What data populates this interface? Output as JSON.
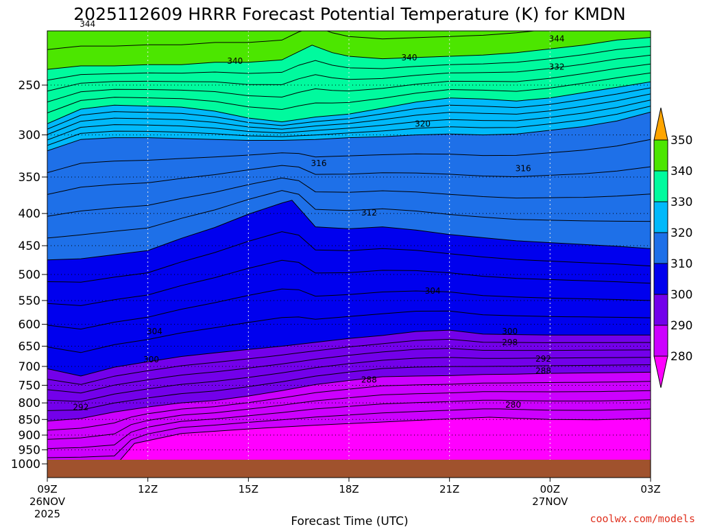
{
  "chart_data": {
    "type": "heatmap",
    "title": "2025112609 HRRR Forecast Potential Temperature (K) for KMDN",
    "xlabel": "Forecast Time (UTC)",
    "ylabel": "",
    "credit": "coolwx.com/models",
    "x_ticks": [
      {
        "hour": 0,
        "label": "09Z",
        "sub": [
          "26NOV",
          "2025"
        ]
      },
      {
        "hour": 3,
        "label": "12Z",
        "sub": []
      },
      {
        "hour": 6,
        "label": "15Z",
        "sub": []
      },
      {
        "hour": 9,
        "label": "18Z",
        "sub": []
      },
      {
        "hour": 12,
        "label": "21Z",
        "sub": []
      },
      {
        "hour": 15,
        "label": "00Z",
        "sub": [
          "27NOV"
        ]
      },
      {
        "hour": 18,
        "label": "03Z",
        "sub": []
      }
    ],
    "x_range_hours": [
      0,
      18
    ],
    "y_scale": "log-pressure",
    "y_range_hPa": [
      1050,
      200
    ],
    "y_ticks": [
      250,
      300,
      350,
      400,
      450,
      500,
      550,
      600,
      650,
      700,
      750,
      800,
      850,
      900,
      950,
      1000
    ],
    "grid": true,
    "levels": [
      280,
      290,
      300,
      310,
      320,
      330,
      340,
      350
    ],
    "colorbar_labels": [
      "280",
      "290",
      "300",
      "310",
      "320",
      "330",
      "340",
      "350"
    ],
    "colors": {
      "lt280": "#ff00ff",
      "b280": "#cc00ff",
      "b290": "#7300ea",
      "b300": "#0000ee",
      "b310": "#1e70e8",
      "b320": "#00b9fa",
      "b330": "#00fa9e",
      "b340": "#4ce600",
      "b350": "#f5f500",
      "gt350": "#ffa500",
      "ground": "#a0522d",
      "credit": "#e0301e"
    },
    "contour_interval_K": 2,
    "contour_labels": [
      {
        "text": "344",
        "hour": 1.2,
        "p": 200
      },
      {
        "text": "344",
        "hour": 15.2,
        "p": 211
      },
      {
        "text": "340",
        "hour": 5.6,
        "p": 229
      },
      {
        "text": "340",
        "hour": 10.8,
        "p": 226
      },
      {
        "text": "332",
        "hour": 15.2,
        "p": 234
      },
      {
        "text": "320",
        "hour": 11.2,
        "p": 288
      },
      {
        "text": "316",
        "hour": 8.1,
        "p": 333
      },
      {
        "text": "316",
        "hour": 14.2,
        "p": 339
      },
      {
        "text": "312",
        "hour": 9.6,
        "p": 399
      },
      {
        "text": "304",
        "hour": 11.5,
        "p": 531
      },
      {
        "text": "304",
        "hour": 3.2,
        "p": 616
      },
      {
        "text": "300",
        "hour": 13.8,
        "p": 616
      },
      {
        "text": "298",
        "hour": 13.8,
        "p": 641
      },
      {
        "text": "300",
        "hour": 3.1,
        "p": 683
      },
      {
        "text": "292",
        "hour": 14.8,
        "p": 681
      },
      {
        "text": "288",
        "hour": 14.8,
        "p": 712
      },
      {
        "text": "288",
        "hour": 9.6,
        "p": 735
      },
      {
        "text": "280",
        "hour": 13.9,
        "p": 806
      },
      {
        "text": "292",
        "hour": 1.0,
        "p": 813
      }
    ],
    "fill_boundaries_hPa": {
      "t280": [
        [
          0,
          1011
        ],
        [
          1,
          1011
        ],
        [
          2,
          1011
        ],
        [
          2.6,
          928
        ],
        [
          4,
          895
        ],
        [
          6,
          880
        ],
        [
          8,
          868
        ],
        [
          10,
          858
        ],
        [
          11.6,
          850
        ],
        [
          13.2,
          843
        ],
        [
          15,
          850
        ],
        [
          16.4,
          851
        ],
        [
          18,
          846
        ]
      ],
      "t290": [
        [
          0,
          855
        ],
        [
          1,
          847
        ],
        [
          2,
          827
        ],
        [
          3,
          812
        ],
        [
          4,
          800
        ],
        [
          5,
          793
        ],
        [
          6,
          780
        ],
        [
          7,
          765
        ],
        [
          8,
          748
        ],
        [
          9,
          737
        ],
        [
          10,
          727
        ],
        [
          11,
          725
        ],
        [
          12,
          724
        ],
        [
          13,
          721
        ],
        [
          14,
          720
        ],
        [
          15,
          718
        ],
        [
          16,
          717
        ],
        [
          17,
          716
        ],
        [
          18,
          715
        ]
      ],
      "t300": [
        [
          0,
          706
        ],
        [
          1,
          725
        ],
        [
          2,
          702
        ],
        [
          3,
          688
        ],
        [
          4,
          675
        ],
        [
          5,
          666
        ],
        [
          6,
          658
        ],
        [
          7,
          650
        ],
        [
          8,
          641
        ],
        [
          9,
          632
        ],
        [
          10,
          625
        ],
        [
          11,
          616
        ],
        [
          12,
          613
        ],
        [
          13,
          622
        ],
        [
          14,
          623
        ],
        [
          15,
          624
        ],
        [
          16,
          624
        ],
        [
          17,
          624
        ],
        [
          18,
          624
        ]
      ],
      "t310": [
        [
          0,
          474
        ],
        [
          1,
          472
        ],
        [
          2,
          465
        ],
        [
          3,
          458
        ],
        [
          4,
          438
        ],
        [
          5,
          421
        ],
        [
          6,
          401
        ],
        [
          7,
          385
        ],
        [
          7.3,
          381
        ],
        [
          8,
          420
        ],
        [
          9,
          423
        ],
        [
          10,
          420
        ],
        [
          11,
          425
        ],
        [
          12,
          432
        ],
        [
          13,
          437
        ],
        [
          14,
          442
        ],
        [
          15,
          445
        ],
        [
          16,
          448
        ],
        [
          17,
          451
        ],
        [
          18,
          455
        ]
      ],
      "t320": [
        [
          0,
          318
        ],
        [
          1,
          305
        ],
        [
          2,
          303
        ],
        [
          3,
          303
        ],
        [
          4,
          304
        ],
        [
          5,
          305
        ],
        [
          6,
          306
        ],
        [
          7,
          306
        ],
        [
          8,
          305
        ],
        [
          9,
          303
        ],
        [
          10,
          302
        ],
        [
          11,
          300
        ],
        [
          12,
          299
        ],
        [
          13,
          300
        ],
        [
          14,
          299
        ],
        [
          15,
          295
        ],
        [
          16,
          291
        ],
        [
          17,
          285
        ],
        [
          18,
          276
        ]
      ],
      "t330": [
        [
          0,
          288
        ],
        [
          1,
          273
        ],
        [
          2,
          269
        ],
        [
          3,
          270
        ],
        [
          4,
          271
        ],
        [
          5,
          275
        ],
        [
          6,
          282
        ],
        [
          7,
          286
        ],
        [
          8,
          281
        ],
        [
          9,
          278
        ],
        [
          10,
          272
        ],
        [
          11,
          266
        ],
        [
          12,
          262
        ],
        [
          13,
          263
        ],
        [
          14,
          265
        ],
        [
          15,
          262
        ],
        [
          16,
          257
        ],
        [
          17,
          252
        ],
        [
          18,
          247
        ]
      ],
      "t340": [
        [
          0,
          236
        ],
        [
          1,
          233
        ],
        [
          2,
          233
        ],
        [
          3,
          232
        ],
        [
          4,
          232
        ],
        [
          5,
          230
        ],
        [
          6,
          230
        ],
        [
          7,
          228
        ],
        [
          7.9,
          216
        ],
        [
          8.5,
          222
        ],
        [
          9,
          225
        ],
        [
          10,
          227
        ],
        [
          11,
          226
        ],
        [
          12,
          225
        ],
        [
          13,
          224
        ],
        [
          14,
          222
        ],
        [
          15,
          219
        ],
        [
          16,
          216
        ],
        [
          17,
          212
        ],
        [
          18,
          210
        ]
      ],
      "t350": [
        [
          0,
          183
        ],
        [
          18,
          183
        ]
      ]
    },
    "ground_top_hPa": 985
  }
}
